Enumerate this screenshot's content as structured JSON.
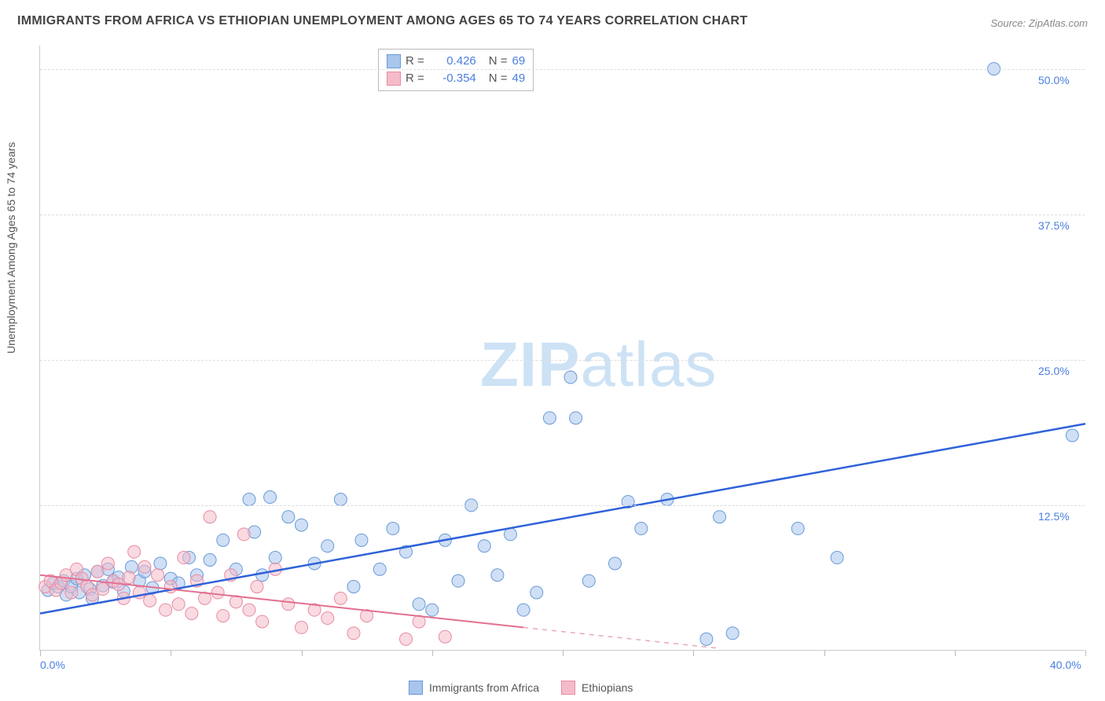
{
  "title": "IMMIGRANTS FROM AFRICA VS ETHIOPIAN UNEMPLOYMENT AMONG AGES 65 TO 74 YEARS CORRELATION CHART",
  "source": "Source: ZipAtlas.com",
  "watermark": {
    "bold": "ZIP",
    "light": "atlas"
  },
  "yaxis_label": "Unemployment Among Ages 65 to 74 years",
  "chart": {
    "type": "scatter",
    "xlim": [
      0,
      40
    ],
    "ylim": [
      0,
      52
    ],
    "xtick_labels": [
      "0.0%",
      "40.0%"
    ],
    "xtick_positions": [
      0,
      40
    ],
    "xtick_marks": [
      0,
      5,
      10,
      15,
      20,
      25,
      30,
      35,
      40
    ],
    "ytick_labels": [
      "12.5%",
      "25.0%",
      "37.5%",
      "50.0%"
    ],
    "ytick_positions": [
      12.5,
      25,
      37.5,
      50
    ],
    "grid_color": "#dddddd",
    "background_color": "#ffffff",
    "marker_radius": 8,
    "marker_opacity": 0.55,
    "series": [
      {
        "name": "Immigrants from Africa",
        "color_fill": "#a8c5ec",
        "color_stroke": "#6a9ad8",
        "trend": {
          "start": [
            0,
            3.2
          ],
          "end": [
            40,
            19.5
          ],
          "color": "#2f62d9",
          "width": 2.5
        },
        "R": "0.426",
        "N": "69",
        "points": [
          [
            0.3,
            5.2
          ],
          [
            0.5,
            5.8
          ],
          [
            0.7,
            5.5
          ],
          [
            0.9,
            6.0
          ],
          [
            1.0,
            4.8
          ],
          [
            1.2,
            5.5
          ],
          [
            1.4,
            6.2
          ],
          [
            1.5,
            5.0
          ],
          [
            1.7,
            6.5
          ],
          [
            1.9,
            5.3
          ],
          [
            2.0,
            4.5
          ],
          [
            2.2,
            6.8
          ],
          [
            2.4,
            5.6
          ],
          [
            2.6,
            7.0
          ],
          [
            2.8,
            5.9
          ],
          [
            3.0,
            6.3
          ],
          [
            3.2,
            5.1
          ],
          [
            3.5,
            7.2
          ],
          [
            3.8,
            6.0
          ],
          [
            4.0,
            6.8
          ],
          [
            4.3,
            5.4
          ],
          [
            4.6,
            7.5
          ],
          [
            5.0,
            6.2
          ],
          [
            5.3,
            5.8
          ],
          [
            5.7,
            8.0
          ],
          [
            6.0,
            6.5
          ],
          [
            6.5,
            7.8
          ],
          [
            7.0,
            9.5
          ],
          [
            7.5,
            7.0
          ],
          [
            8.0,
            13.0
          ],
          [
            8.2,
            10.2
          ],
          [
            8.5,
            6.5
          ],
          [
            8.8,
            13.2
          ],
          [
            9.0,
            8.0
          ],
          [
            9.5,
            11.5
          ],
          [
            10.0,
            10.8
          ],
          [
            10.5,
            7.5
          ],
          [
            11.0,
            9.0
          ],
          [
            11.5,
            13.0
          ],
          [
            12.0,
            5.5
          ],
          [
            12.3,
            9.5
          ],
          [
            13.0,
            7.0
          ],
          [
            13.5,
            10.5
          ],
          [
            14.0,
            8.5
          ],
          [
            14.5,
            4.0
          ],
          [
            15.0,
            3.5
          ],
          [
            15.5,
            9.5
          ],
          [
            16.0,
            6.0
          ],
          [
            16.5,
            12.5
          ],
          [
            17.0,
            9.0
          ],
          [
            17.5,
            6.5
          ],
          [
            18.0,
            10.0
          ],
          [
            18.5,
            3.5
          ],
          [
            19.0,
            5.0
          ],
          [
            19.5,
            20.0
          ],
          [
            20.3,
            23.5
          ],
          [
            20.5,
            20.0
          ],
          [
            21.0,
            6.0
          ],
          [
            22.0,
            7.5
          ],
          [
            22.5,
            12.8
          ],
          [
            23.0,
            10.5
          ],
          [
            24.0,
            13.0
          ],
          [
            25.5,
            1.0
          ],
          [
            26.0,
            11.5
          ],
          [
            26.5,
            1.5
          ],
          [
            29.0,
            10.5
          ],
          [
            30.5,
            8.0
          ],
          [
            36.5,
            50.0
          ],
          [
            39.5,
            18.5
          ]
        ]
      },
      {
        "name": "Ethiopians",
        "color_fill": "#f4bcc9",
        "color_stroke": "#e98ba3",
        "trend_solid": {
          "start": [
            0,
            6.5
          ],
          "end": [
            18.5,
            2.0
          ],
          "color": "#e36f8f",
          "width": 2
        },
        "trend_dash": {
          "start": [
            18.5,
            2.0
          ],
          "end": [
            26,
            0.2
          ],
          "color": "#e8a8b8",
          "width": 1.5
        },
        "R": "-0.354",
        "N": "49",
        "points": [
          [
            0.2,
            5.5
          ],
          [
            0.4,
            6.0
          ],
          [
            0.6,
            5.2
          ],
          [
            0.8,
            5.8
          ],
          [
            1.0,
            6.5
          ],
          [
            1.2,
            5.0
          ],
          [
            1.4,
            7.0
          ],
          [
            1.6,
            6.2
          ],
          [
            1.8,
            5.5
          ],
          [
            2.0,
            4.8
          ],
          [
            2.2,
            6.8
          ],
          [
            2.4,
            5.3
          ],
          [
            2.6,
            7.5
          ],
          [
            2.8,
            6.0
          ],
          [
            3.0,
            5.7
          ],
          [
            3.2,
            4.5
          ],
          [
            3.4,
            6.3
          ],
          [
            3.6,
            8.5
          ],
          [
            3.8,
            5.0
          ],
          [
            4.0,
            7.2
          ],
          [
            4.2,
            4.3
          ],
          [
            4.5,
            6.5
          ],
          [
            4.8,
            3.5
          ],
          [
            5.0,
            5.5
          ],
          [
            5.3,
            4.0
          ],
          [
            5.5,
            8.0
          ],
          [
            5.8,
            3.2
          ],
          [
            6.0,
            6.0
          ],
          [
            6.3,
            4.5
          ],
          [
            6.5,
            11.5
          ],
          [
            6.8,
            5.0
          ],
          [
            7.0,
            3.0
          ],
          [
            7.3,
            6.5
          ],
          [
            7.5,
            4.2
          ],
          [
            7.8,
            10.0
          ],
          [
            8.0,
            3.5
          ],
          [
            8.3,
            5.5
          ],
          [
            8.5,
            2.5
          ],
          [
            9.0,
            7.0
          ],
          [
            9.5,
            4.0
          ],
          [
            10.0,
            2.0
          ],
          [
            10.5,
            3.5
          ],
          [
            11.0,
            2.8
          ],
          [
            11.5,
            4.5
          ],
          [
            12.0,
            1.5
          ],
          [
            12.5,
            3.0
          ],
          [
            14.0,
            1.0
          ],
          [
            14.5,
            2.5
          ],
          [
            15.5,
            1.2
          ]
        ]
      }
    ],
    "legend_top": {
      "r_label": "R  =",
      "n_label": "N  =",
      "r_color": "#4a7fe0",
      "text_color": "#555555"
    },
    "legend_bottom": [
      {
        "label": "Immigrants from Africa",
        "fill": "#a8c5ec",
        "stroke": "#6a9ad8"
      },
      {
        "label": "Ethiopians",
        "fill": "#f4bcc9",
        "stroke": "#e98ba3"
      }
    ]
  }
}
